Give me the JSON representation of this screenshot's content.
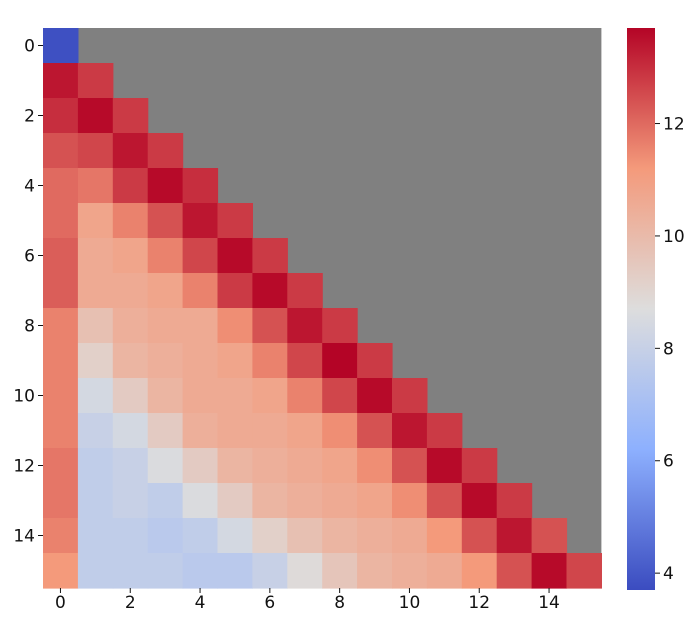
{
  "chart_data": {
    "type": "heatmap",
    "title": "",
    "xlabel": "",
    "ylabel": "",
    "rows": 16,
    "cols": 16,
    "x_ticks": [
      "0",
      "2",
      "4",
      "6",
      "8",
      "10",
      "12",
      "14"
    ],
    "y_ticks": [
      "0",
      "2",
      "4",
      "6",
      "8",
      "10",
      "12",
      "14"
    ],
    "masked_color": "#808080",
    "mask": "upper-triangle",
    "colormap": "coolwarm",
    "colorbar": {
      "vmin": 3.7,
      "vmax": 13.7,
      "ticks": [
        "4",
        "6",
        "8",
        "10",
        "12"
      ],
      "tick_values": [
        4,
        6,
        8,
        10,
        12
      ]
    },
    "values": [
      [
        3.8
      ],
      [
        13.4,
        12.8
      ],
      [
        13.0,
        13.6,
        12.8
      ],
      [
        12.4,
        12.6,
        13.4,
        12.8
      ],
      [
        12.0,
        11.8,
        12.8,
        13.6,
        13.0
      ],
      [
        12.0,
        10.8,
        11.6,
        12.4,
        13.4,
        12.8
      ],
      [
        12.2,
        10.6,
        10.8,
        11.6,
        12.6,
        13.6,
        12.8
      ],
      [
        12.2,
        10.6,
        10.6,
        10.8,
        11.6,
        12.8,
        13.6,
        12.8
      ],
      [
        11.6,
        9.8,
        10.4,
        10.6,
        10.6,
        11.4,
        12.4,
        13.4,
        12.8
      ],
      [
        11.6,
        9.2,
        10.2,
        10.4,
        10.6,
        10.8,
        11.6,
        12.6,
        13.8,
        12.8
      ],
      [
        11.6,
        8.4,
        9.4,
        10.2,
        10.6,
        10.6,
        10.8,
        11.6,
        12.6,
        13.6,
        12.8
      ],
      [
        11.6,
        8.0,
        8.4,
        9.4,
        10.4,
        10.6,
        10.6,
        10.8,
        11.4,
        12.4,
        13.4,
        12.8
      ],
      [
        11.8,
        7.8,
        8.0,
        8.6,
        9.4,
        10.2,
        10.4,
        10.6,
        10.8,
        11.4,
        12.4,
        13.6,
        12.8
      ],
      [
        11.8,
        7.8,
        8.0,
        7.8,
        8.6,
        9.4,
        10.2,
        10.4,
        10.6,
        10.8,
        11.4,
        12.4,
        13.6,
        12.8
      ],
      [
        11.6,
        7.8,
        7.8,
        7.6,
        7.8,
        8.4,
        9.2,
        9.8,
        10.2,
        10.4,
        10.6,
        11.2,
        12.4,
        13.4,
        12.4
      ],
      [
        11.2,
        7.8,
        7.8,
        7.8,
        7.6,
        7.6,
        8.0,
        8.8,
        9.6,
        10.2,
        10.4,
        10.6,
        11.2,
        12.4,
        13.6,
        12.6
      ]
    ]
  }
}
